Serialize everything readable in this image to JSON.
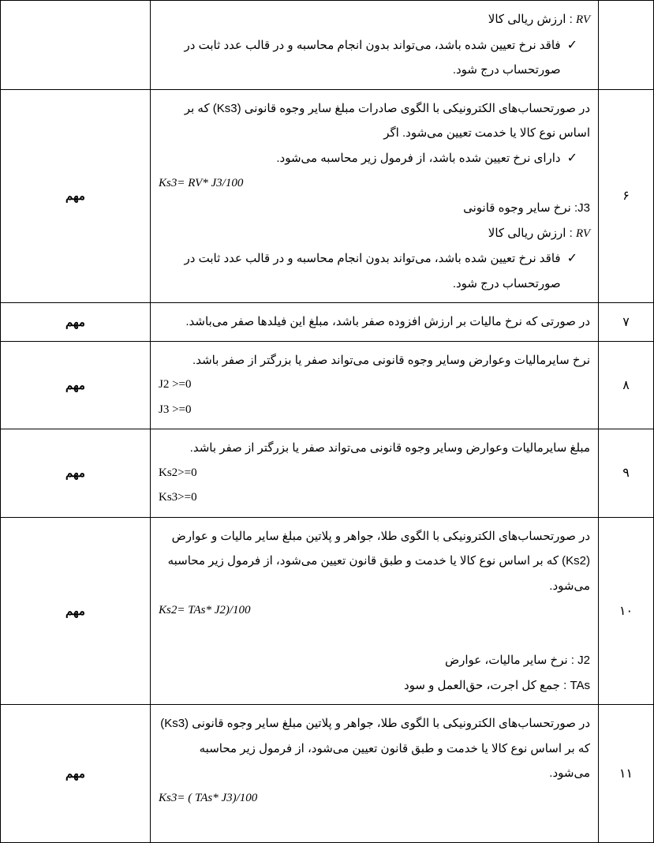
{
  "labels": {
    "important": "مهم",
    "rv_prefix": "RV",
    "rv_label": ": ارزش ریالی کالا",
    "j3_label": "J3: نرخ سایر وجوه قانونی",
    "j2_label": "J2 : نرخ سایر مالیات، عوارض",
    "tas_label": "TAs : جمع کل اجرت، حق‌العمل و سود"
  },
  "rows": {
    "r0": {
      "check1": "فاقد نرخ تعیین شده باشد، می‌تواند بدون انجام محاسبه و در قالب عدد ثابت  در صورتحساب درج شود."
    },
    "r6": {
      "num": "۶",
      "p1": "در صورتحساب‌های الکترونیکی با الگوی صادرات مبلغ سایر وجوه قانونی (Ks3) که بر اساس نوع کالا یا خدمت تعیین می‌شود. اگر",
      "check1": "دارای نرخ تعیین شده باشد، از فرمول زیر محاسبه می‌شود.",
      "formula": "Ks3= RV* J3/100",
      "check2": "فاقد نرخ تعیین شده باشد، می‌تواند بدون انجام محاسبه و در قالب عدد ثابت  در صورتحساب درج شود."
    },
    "r7": {
      "num": "۷",
      "p1": "در صورتی که نرخ مالیات بر ارزش افزوده صفر باشد، مبلغ این فیلدها صفر می‌باشد."
    },
    "r8": {
      "num": "۸",
      "p1": "نرخ سایرمالیات وعوارض وسایر وجوه قانونی می‌تواند صفر یا بزرگتر از صفر باشد.",
      "code1": "J2 >=0",
      "code2": "J3 >=0"
    },
    "r9": {
      "num": "۹",
      "p1": "مبلغ سایرمالیات وعوارض وسایر وجوه قانونی می‌تواند صفر یا بزرگتر از صفر باشد.",
      "code1": "Ks2>=0",
      "code2": "Ks3>=0"
    },
    "r10": {
      "num": "۱۰",
      "p1": "در صورتحساب‌های الکترونیکی با الگوی طلا، جواهر و پلاتین مبلغ سایر مالیات و عوارض  (Ks2) که بر اساس نوع کالا یا خدمت و طبق قانون تعیین می‌شود، از فرمول زیر محاسبه می‌شود.",
      "formula": "Ks2= TAs* J2)/100"
    },
    "r11": {
      "num": "۱۱",
      "p1": "در صورتحساب‌های الکترونیکی با الگوی طلا، جواهر و پلاتین مبلغ سایر وجوه قانونی (Ks3) که بر اساس نوع کالا یا خدمت و طبق قانون تعیین می‌شود، از فرمول زیر محاسبه می‌شود.",
      "formula": "Ks3= ( TAs* J3)/100"
    }
  }
}
